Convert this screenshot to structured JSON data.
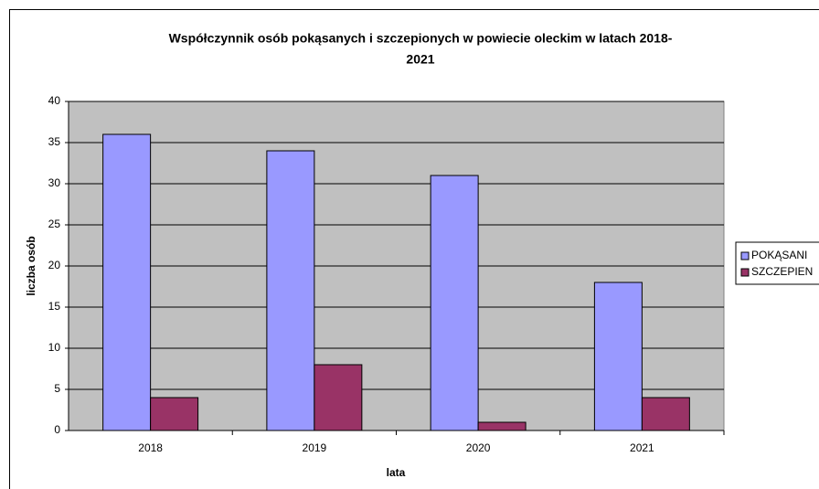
{
  "chart_data": {
    "type": "bar",
    "title": [
      "Współczynnik osób pokąsanych i szczepionych w powiecie oleckim w latach 2018-",
      "2021"
    ],
    "xlabel": "lata",
    "ylabel": "liczba osób",
    "categories": [
      "2018",
      "2019",
      "2020",
      "2021"
    ],
    "series": [
      {
        "name": "POKĄSANI",
        "color": "#9999ff",
        "values": [
          36,
          34,
          31,
          18
        ]
      },
      {
        "name": "SZCZEPIEN",
        "color": "#993366",
        "values": [
          4,
          8,
          1,
          4
        ]
      }
    ],
    "ylim": [
      0,
      40
    ],
    "yticks": [
      0,
      5,
      10,
      15,
      20,
      25,
      30,
      35,
      40
    ],
    "grid": true,
    "legend": "right"
  }
}
